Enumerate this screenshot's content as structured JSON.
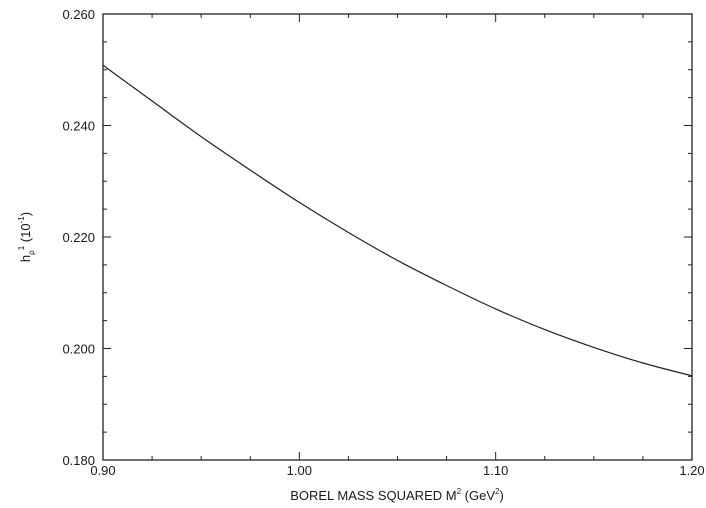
{
  "chart_data": {
    "type": "line",
    "title": "",
    "xlabel": {
      "main": "BOREL MASS SQUARED M",
      "superscript": "2",
      "unit_open": " (GeV",
      "unit_superscript": "2",
      "unit_close": ")"
    },
    "ylabel": {
      "main": "h",
      "subscript": "ρ",
      "superscript": "1",
      "unit_open": " (10",
      "unit_superscript": "-1",
      "unit_close": ")"
    },
    "xlim": [
      0.9,
      1.2
    ],
    "ylim": [
      0.18,
      0.26
    ],
    "xticks": [
      0.9,
      1.0,
      1.1,
      1.2
    ],
    "xtick_labels": [
      "0.90",
      "1.00",
      "1.10",
      "1.20"
    ],
    "yticks": [
      0.18,
      0.2,
      0.22,
      0.24,
      0.26
    ],
    "ytick_labels": [
      "0.180",
      "0.200",
      "0.220",
      "0.240",
      "0.260"
    ],
    "grid": false,
    "line_color": "#222222",
    "series": [
      {
        "x": [
          0.9,
          0.925,
          0.95,
          0.975,
          1.0,
          1.025,
          1.05,
          1.075,
          1.1,
          1.125,
          1.15,
          1.175,
          1.2
        ],
        "y": [
          0.2508,
          0.2444,
          0.238,
          0.232,
          0.2262,
          0.2208,
          0.2158,
          0.2113,
          0.2071,
          0.2034,
          0.2002,
          0.1974,
          0.1951
        ]
      }
    ]
  }
}
